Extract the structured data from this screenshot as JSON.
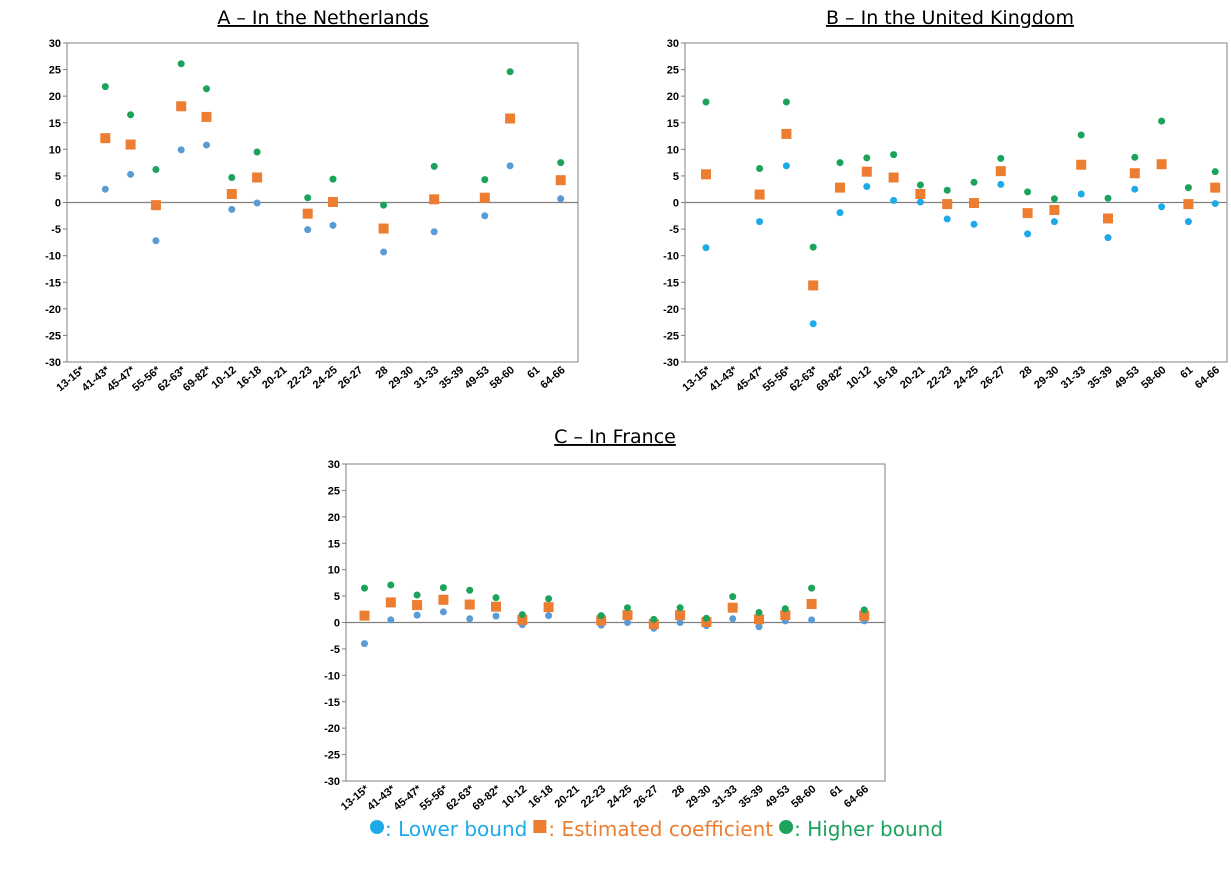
{
  "chart_data": [
    {
      "type": "scatter",
      "title": "A – In the Netherlands",
      "ylim": [
        -30,
        30
      ],
      "ytick_step": 5,
      "grid": false,
      "categories": [
        "13-15*",
        "41-43*",
        "45-47*",
        "55-56*",
        "62-63*",
        "69-82*",
        "10-12",
        "16-18",
        "20-21",
        "22-23",
        "24-25",
        "26-27",
        "28",
        "29-30",
        "31-33",
        "35-39",
        "49-53",
        "58-60",
        "61",
        "64-66"
      ],
      "series": [
        {
          "name": "Lower bound",
          "values": [
            null,
            2.5,
            5.3,
            -7.2,
            9.9,
            10.8,
            -1.3,
            -0.1,
            null,
            -5.1,
            -4.3,
            null,
            -9.3,
            null,
            -5.5,
            null,
            -2.5,
            6.9,
            null,
            0.7
          ]
        },
        {
          "name": "Estimated coefficient",
          "values": [
            null,
            12.1,
            10.9,
            -0.5,
            18.1,
            16.1,
            1.6,
            4.7,
            null,
            -2.1,
            0.1,
            null,
            -4.9,
            null,
            0.6,
            null,
            0.9,
            15.8,
            null,
            4.2
          ]
        },
        {
          "name": "Higher bound",
          "values": [
            null,
            21.8,
            16.5,
            6.2,
            26.1,
            21.4,
            4.7,
            9.5,
            null,
            0.9,
            4.4,
            null,
            -0.5,
            null,
            6.8,
            null,
            4.3,
            24.6,
            null,
            7.5
          ]
        }
      ]
    },
    {
      "type": "scatter",
      "title": "B – In the United Kingdom",
      "ylim": [
        -30,
        30
      ],
      "ytick_step": 5,
      "grid": false,
      "categories": [
        "13-15*",
        "41-43*",
        "45-47*",
        "55-56*",
        "62-63*",
        "69-82*",
        "10-12",
        "16-18",
        "20-21",
        "22-23",
        "24-25",
        "26-27",
        "28",
        "29-30",
        "31-33",
        "35-39",
        "49-53",
        "58-60",
        "61",
        "64-66"
      ],
      "series": [
        {
          "name": "Lower bound",
          "values": [
            -8.5,
            null,
            -3.6,
            6.9,
            -22.8,
            -1.9,
            3.0,
            0.4,
            0.1,
            -3.1,
            -4.1,
            3.4,
            -5.9,
            -3.6,
            1.6,
            -6.6,
            2.5,
            -0.8,
            -3.6,
            -0.2
          ]
        },
        {
          "name": "Estimated coefficient",
          "values": [
            5.3,
            null,
            1.5,
            12.9,
            -15.6,
            2.8,
            5.8,
            4.7,
            1.6,
            -0.3,
            -0.1,
            5.9,
            -2.0,
            -1.4,
            7.1,
            -3.0,
            5.5,
            7.2,
            -0.3,
            2.8
          ]
        },
        {
          "name": "Higher bound",
          "values": [
            18.9,
            null,
            6.4,
            18.9,
            -8.4,
            7.5,
            8.4,
            9.0,
            3.3,
            2.3,
            3.8,
            8.3,
            2.0,
            0.7,
            12.7,
            0.8,
            8.5,
            15.3,
            2.8,
            5.8
          ]
        }
      ]
    },
    {
      "type": "scatter",
      "title": "C – In France",
      "ylim": [
        -30,
        30
      ],
      "ytick_step": 5,
      "grid": false,
      "categories": [
        "13-15*",
        "41-43*",
        "45-47*",
        "55-56*",
        "62-63*",
        "69-82*",
        "10-12",
        "16-18",
        "20-21",
        "22-23",
        "24-25",
        "26-27",
        "28",
        "29-30",
        "31-33",
        "35-39",
        "49-53",
        "58-60",
        "61",
        "64-66"
      ],
      "series": [
        {
          "name": "Lower bound",
          "values": [
            -4.0,
            0.5,
            1.4,
            2.0,
            0.7,
            1.2,
            -0.4,
            1.3,
            null,
            -0.5,
            0.0,
            -1.1,
            0.0,
            -0.6,
            0.7,
            -0.8,
            0.3,
            0.5,
            null,
            0.3
          ]
        },
        {
          "name": "Estimated coefficient",
          "values": [
            1.3,
            3.8,
            3.3,
            4.3,
            3.4,
            3.0,
            0.5,
            2.9,
            null,
            0.4,
            1.4,
            -0.3,
            1.4,
            0.1,
            2.8,
            0.6,
            1.4,
            3.5,
            null,
            1.3
          ]
        },
        {
          "name": "Higher bound",
          "values": [
            6.5,
            7.1,
            5.2,
            6.6,
            6.1,
            4.7,
            1.5,
            4.5,
            null,
            1.3,
            2.8,
            0.6,
            2.8,
            0.8,
            4.9,
            1.9,
            2.6,
            6.5,
            null,
            2.4
          ]
        }
      ]
    }
  ],
  "legend": {
    "items": [
      {
        "marker": "circle",
        "label": ": Lower bound"
      },
      {
        "marker": "square",
        "label": ": Estimated coefficient"
      },
      {
        "marker": "circle",
        "label": ": Higher bound"
      }
    ]
  },
  "colors": {
    "lower_A": "#5b9bd5",
    "lower_B": "#1eaae8",
    "lower_C": "#5b9bd5",
    "estimate": "#ed7d31",
    "higher": "#1ba35c",
    "legend_lower": "#1eaae8",
    "legend_estimate": "#ed7d31",
    "legend_higher": "#1ba35c",
    "axis": "#808080"
  }
}
